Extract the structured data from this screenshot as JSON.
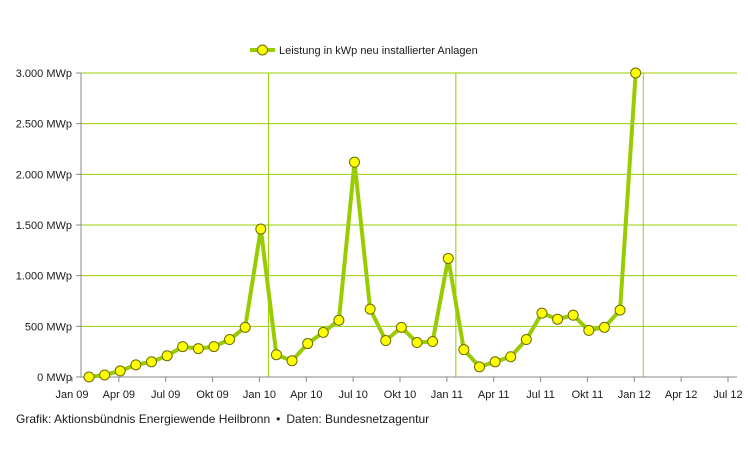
{
  "chart_data": {
    "type": "line",
    "title": "",
    "xlabel": "",
    "ylabel": "",
    "ylim": [
      0,
      3000
    ],
    "y_ticks": [
      {
        "value": 0,
        "label": "0 MWp"
      },
      {
        "value": 500,
        "label": "500 MWp"
      },
      {
        "value": 1000,
        "label": "1.000 MWp"
      },
      {
        "value": 1500,
        "label": "1.500 MWp"
      },
      {
        "value": 2000,
        "label": "2.000 MWp"
      },
      {
        "value": 2500,
        "label": "2.500 MWp"
      },
      {
        "value": 3000,
        "label": "3.000 MWp"
      }
    ],
    "x_ticks": [
      {
        "month": 0,
        "label": "Jan 09"
      },
      {
        "month": 3,
        "label": "Apr 09"
      },
      {
        "month": 6,
        "label": "Jul 09"
      },
      {
        "month": 9,
        "label": "Okt 09"
      },
      {
        "month": 12,
        "label": "Jan 10"
      },
      {
        "month": 15,
        "label": "Apr 10"
      },
      {
        "month": 18,
        "label": "Jul 10"
      },
      {
        "month": 21,
        "label": "Okt 10"
      },
      {
        "month": 24,
        "label": "Jan 11"
      },
      {
        "month": 27,
        "label": "Apr 11"
      },
      {
        "month": 30,
        "label": "Jul 11"
      },
      {
        "month": 33,
        "label": "Okt 11"
      },
      {
        "month": 36,
        "label": "Jan 12"
      },
      {
        "month": 39,
        "label": "Apr 12"
      },
      {
        "month": 42,
        "label": "Jul 12"
      }
    ],
    "x_range_months": [
      0,
      42
    ],
    "year_gridlines_months": [
      12,
      24,
      36
    ],
    "series": [
      {
        "name": "Leistung in kWp neu installierter Anlagen",
        "color": "#99cc00",
        "marker_color": "#ffff00",
        "marker_edge": "#6b6b00",
        "values": [
          0,
          20,
          60,
          120,
          150,
          210,
          300,
          280,
          300,
          370,
          490,
          1460,
          220,
          160,
          330,
          440,
          560,
          2120,
          670,
          360,
          490,
          340,
          350,
          1170,
          270,
          100,
          150,
          200,
          370,
          630,
          570,
          610,
          460,
          490,
          660,
          3000
        ]
      }
    ]
  },
  "footer": {
    "credit": "Grafik:  Aktionsbündnis Energiewende Heilbronn",
    "separator": "•",
    "source": "Daten:  Bundesnetzagentur"
  }
}
